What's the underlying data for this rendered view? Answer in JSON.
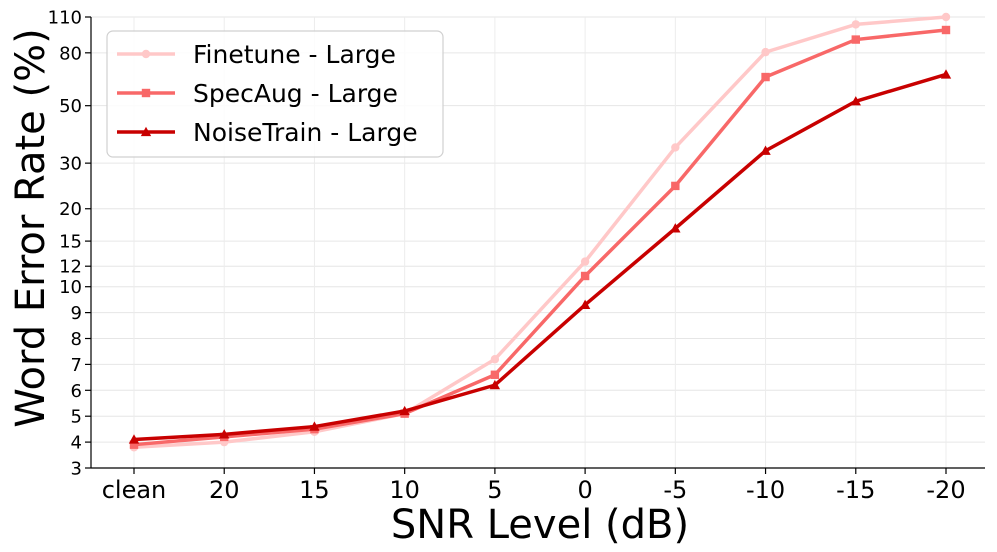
{
  "chart_data": {
    "type": "line",
    "categories": [
      "clean",
      "20",
      "15",
      "10",
      "5",
      "0",
      "-5",
      "-10",
      "-15",
      "-20"
    ],
    "xlabel": "SNR Level (dB)",
    "ylabel": "Word Error Rate (%)",
    "yscale": "symlog",
    "ylim": [
      3,
      110
    ],
    "yticks": [
      3,
      4,
      5,
      6,
      7,
      8,
      9,
      10,
      12,
      15,
      20,
      30,
      50,
      80,
      110
    ],
    "grid": true,
    "legend_position": "top-left",
    "series": [
      {
        "name": "Finetune - Large",
        "color": "#ffc8c8",
        "marker": "circle",
        "values": [
          3.8,
          4.0,
          4.4,
          5.1,
          7.2,
          12.5,
          34.5,
          80.5,
          103,
          110
        ]
      },
      {
        "name": "SpecAug - Large",
        "color": "#f86868",
        "marker": "square",
        "values": [
          3.9,
          4.2,
          4.5,
          5.1,
          6.6,
          11.0,
          24.5,
          64.5,
          90,
          98
        ]
      },
      {
        "name": "NoiseTrain - Large",
        "color": "#c80000",
        "marker": "triangle",
        "values": [
          4.1,
          4.3,
          4.6,
          5.2,
          6.2,
          9.3,
          16.8,
          33.5,
          52,
          66
        ]
      }
    ]
  }
}
